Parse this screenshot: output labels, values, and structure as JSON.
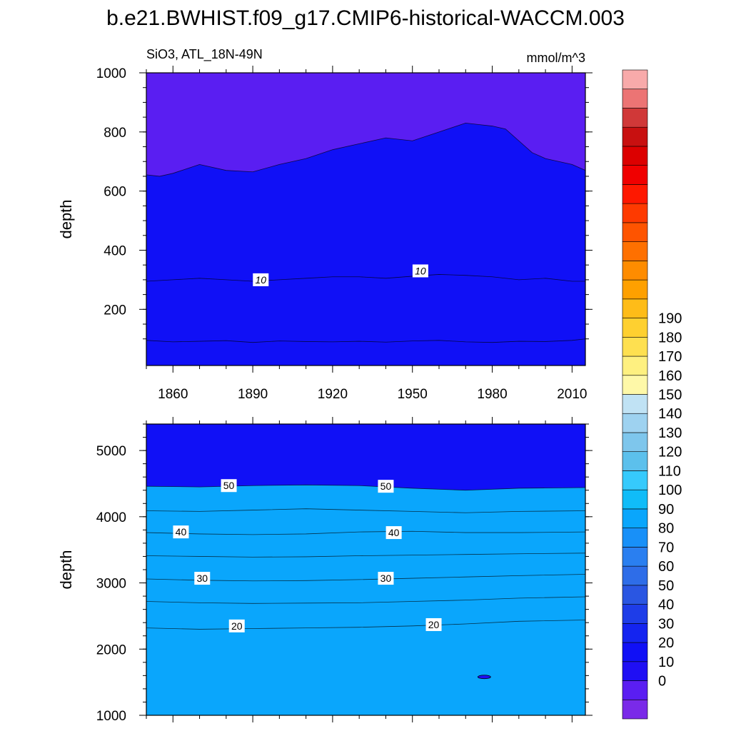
{
  "title": "b.e21.BWHIST.f09_g17.CMIP6-historical-WACCM.003",
  "colors": {
    "levels": [
      "#7a2ae8",
      "#5a1ef2",
      "#1f0ff4",
      "#1010f6",
      "#1424f0",
      "#1e3de8",
      "#2a56e2",
      "#2e6de8",
      "#2a7ff0",
      "#1890f8",
      "#0aa6fc",
      "#10bcf8",
      "#36cafc",
      "#5cc0ec",
      "#7ec6ec",
      "#9ed2f0",
      "#c0e2f4",
      "#fef8a8",
      "#fef080",
      "#fee050",
      "#fed030",
      "#febc18",
      "#fea000",
      "#fe8c00",
      "#fe7000",
      "#fe5400",
      "#fe3a00",
      "#fe1800",
      "#f00000",
      "#dc0000",
      "#c81010",
      "#d03838",
      "#ec7474",
      "#f8aaaa"
    ]
  },
  "chart_data": [
    {
      "type": "heatmap",
      "subtitle_left": "SiO3, ATL_18N-49N",
      "subtitle_right": "mmol/m^3",
      "ylabel": "depth",
      "xlim": [
        1850,
        2015
      ],
      "ylim": [
        1000,
        10
      ],
      "x_ticks": [
        "1860",
        "1890",
        "1920",
        "1950",
        "1980",
        "2010"
      ],
      "y_ticks": [
        "200",
        "400",
        "600",
        "800",
        "1000"
      ],
      "contour_labels": [
        {
          "text": "10",
          "x": 1893,
          "y": 300
        },
        {
          "text": "10",
          "x": 1953,
          "y": 330
        }
      ],
      "contours": [
        {
          "level": 5,
          "color_index": 1,
          "x": [
            1850,
            1860,
            1870,
            1880,
            1890,
            1900,
            1910,
            1920,
            1930,
            1940,
            1950,
            1960,
            1970,
            1980,
            1990,
            2000,
            2010,
            2015
          ],
          "y": [
            95,
            90,
            92,
            94,
            88,
            93,
            91,
            90,
            92,
            89,
            93,
            95,
            90,
            88,
            92,
            91,
            95,
            100
          ]
        },
        {
          "level": 10,
          "color_index": 2,
          "x": [
            1850,
            1860,
            1870,
            1880,
            1890,
            1900,
            1910,
            1920,
            1930,
            1940,
            1950,
            1960,
            1970,
            1980,
            1990,
            2000,
            2010,
            2015
          ],
          "y": [
            295,
            300,
            305,
            300,
            295,
            300,
            305,
            310,
            310,
            305,
            312,
            318,
            315,
            310,
            300,
            305,
            295,
            295
          ]
        },
        {
          "level": 15,
          "color_index": 3,
          "x": [
            1850,
            1855,
            1860,
            1870,
            1880,
            1890,
            1900,
            1910,
            1920,
            1930,
            1940,
            1950,
            1960,
            1970,
            1975,
            1980,
            1985,
            1990,
            1995,
            2000,
            2005,
            2010,
            2015
          ],
          "y": [
            655,
            650,
            660,
            690,
            670,
            665,
            690,
            710,
            740,
            760,
            780,
            770,
            800,
            830,
            825,
            820,
            810,
            770,
            730,
            710,
            700,
            690,
            670
          ]
        }
      ]
    },
    {
      "type": "heatmap",
      "ylabel": "depth",
      "xlim": [
        1850,
        2015
      ],
      "ylim": [
        5400,
        1000
      ],
      "y_ticks": [
        "1000",
        "2000",
        "3000",
        "4000",
        "5000"
      ],
      "contour_labels": [
        {
          "text": "20",
          "x": 1884,
          "y": 2350
        },
        {
          "text": "20",
          "x": 1958,
          "y": 2370
        },
        {
          "text": "30",
          "x": 1871,
          "y": 3070
        },
        {
          "text": "30",
          "x": 1940,
          "y": 3070
        },
        {
          "text": "40",
          "x": 1863,
          "y": 3770
        },
        {
          "text": "40",
          "x": 1943,
          "y": 3760
        },
        {
          "text": "50",
          "x": 1881,
          "y": 4470
        },
        {
          "text": "50",
          "x": 1940,
          "y": 4460
        }
      ],
      "contours": [
        {
          "level": 20,
          "color_index": 4,
          "x": [
            1850,
            1870,
            1890,
            1910,
            1930,
            1950,
            1970,
            1990,
            2015
          ],
          "y": [
            2320,
            2300,
            2310,
            2320,
            2330,
            2350,
            2380,
            2420,
            2440
          ]
        },
        {
          "level": 25,
          "color_index": 5,
          "x": [
            1850,
            1870,
            1890,
            1910,
            1930,
            1950,
            1970,
            1990,
            2015
          ],
          "y": [
            2720,
            2700,
            2690,
            2695,
            2700,
            2720,
            2740,
            2770,
            2790
          ]
        },
        {
          "level": 30,
          "color_index": 6,
          "x": [
            1850,
            1870,
            1890,
            1910,
            1930,
            1950,
            1970,
            1990,
            2015
          ],
          "y": [
            3060,
            3040,
            3030,
            3035,
            3050,
            3070,
            3090,
            3110,
            3130
          ]
        },
        {
          "level": 35,
          "color_index": 7,
          "x": [
            1850,
            1870,
            1890,
            1910,
            1930,
            1950,
            1970,
            1990,
            2015
          ],
          "y": [
            3410,
            3400,
            3390,
            3395,
            3410,
            3420,
            3430,
            3440,
            3450
          ]
        },
        {
          "level": 40,
          "color_index": 8,
          "x": [
            1850,
            1870,
            1890,
            1910,
            1930,
            1950,
            1970,
            1990,
            2015
          ],
          "y": [
            3760,
            3740,
            3730,
            3740,
            3770,
            3780,
            3760,
            3760,
            3770
          ]
        },
        {
          "level": 45,
          "color_index": 9,
          "x": [
            1850,
            1870,
            1890,
            1910,
            1930,
            1950,
            1970,
            1990,
            2015
          ],
          "y": [
            4090,
            4080,
            4100,
            4120,
            4100,
            4080,
            4060,
            4080,
            4090
          ]
        },
        {
          "level": 50,
          "color_index": 10,
          "x": [
            1850,
            1870,
            1890,
            1910,
            1930,
            1950,
            1970,
            1990,
            2015
          ],
          "y": [
            4460,
            4450,
            4470,
            4480,
            4470,
            4430,
            4400,
            4430,
            4440
          ]
        }
      ],
      "closed_contours": [
        {
          "x": 1977,
          "y": 1580
        }
      ]
    }
  ],
  "colorbar": {
    "labels": [
      "190",
      "180",
      "170",
      "160",
      "150",
      "140",
      "130",
      "120",
      "110",
      "100",
      "90",
      "80",
      "70",
      "60",
      "50",
      "40",
      "30",
      "20",
      "10",
      "0"
    ]
  }
}
